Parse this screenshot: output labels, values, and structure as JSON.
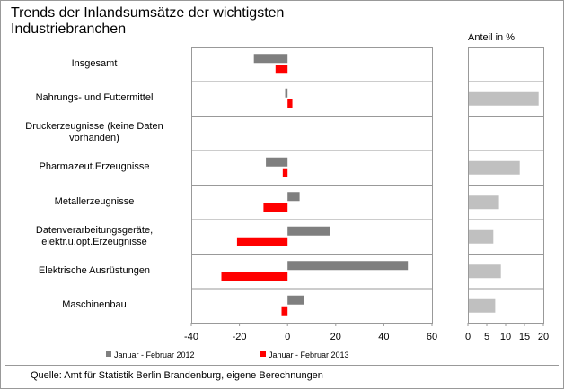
{
  "chart_data": [
    {
      "type": "bar",
      "orientation": "horizontal",
      "title": "Trends der Inlandsumsätze  der wichtigsten Industriebranchen",
      "categories": [
        "Insgesamt",
        "Nahrungs- und Futtermittel",
        "Druckerzeugnisse (keine Daten vorhanden)",
        "Pharmazeut.Erzeugnisse",
        "Metallerzeugnisse",
        "Datenverarbeitungsgeräte, elektr.u.opt.Erzeugnisse",
        "Elektrische Ausrüstungen",
        "Maschinenbau"
      ],
      "series": [
        {
          "name": "Januar - Februar 2012",
          "color": "#7f7f7f",
          "values": [
            -14,
            -1,
            null,
            -9,
            5,
            17.5,
            50,
            7
          ]
        },
        {
          "name": "Januar - Februar 2013",
          "color": "#ff0000",
          "values": [
            -5,
            2,
            null,
            -2,
            -10,
            -21,
            -27.5,
            -2.5
          ]
        }
      ],
      "xlim": [
        -40,
        60
      ],
      "xticks": [
        -40,
        -20,
        0,
        20,
        40,
        60
      ],
      "source": "Quelle: Amt für Statistik Berlin Brandenburg, eigene Berechnungen"
    },
    {
      "type": "bar",
      "orientation": "horizontal",
      "title": "Anteil in %",
      "values": [
        null,
        18.5,
        null,
        13.5,
        8,
        6.5,
        8.5,
        7
      ],
      "color": "#c0c0c0",
      "xlim": [
        0,
        20
      ],
      "xticks": [
        0,
        5,
        10,
        15,
        20
      ]
    }
  ]
}
